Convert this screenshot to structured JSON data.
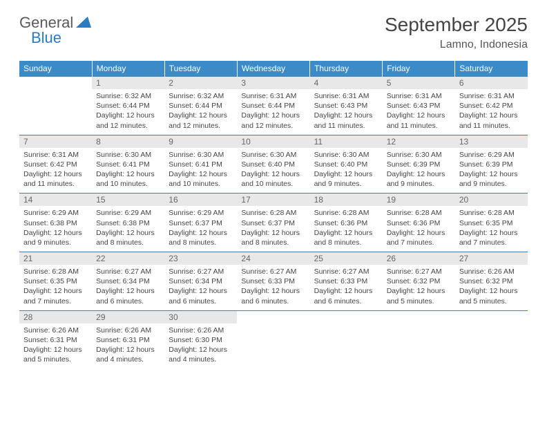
{
  "logo": {
    "text1": "General",
    "text2": "Blue"
  },
  "title": "September 2025",
  "location": "Lamno, Indonesia",
  "colors": {
    "header_bg": "#3b8bc9",
    "header_text": "#ffffff",
    "daynum_bg": "#e8e8e8",
    "daynum_text": "#666666",
    "cell_text": "#444444",
    "border": "#4a7ba8",
    "logo_gray": "#5a5a5a",
    "logo_blue": "#2b7bbf"
  },
  "fonts": {
    "title_size": 28,
    "location_size": 16,
    "header_size": 12,
    "daynum_size": 12,
    "body_size": 10.5
  },
  "day_headers": [
    "Sunday",
    "Monday",
    "Tuesday",
    "Wednesday",
    "Thursday",
    "Friday",
    "Saturday"
  ],
  "weeks": [
    [
      {
        "n": "",
        "sr": "",
        "ss": "",
        "dl": ""
      },
      {
        "n": "1",
        "sr": "Sunrise: 6:32 AM",
        "ss": "Sunset: 6:44 PM",
        "dl": "Daylight: 12 hours and 12 minutes."
      },
      {
        "n": "2",
        "sr": "Sunrise: 6:32 AM",
        "ss": "Sunset: 6:44 PM",
        "dl": "Daylight: 12 hours and 12 minutes."
      },
      {
        "n": "3",
        "sr": "Sunrise: 6:31 AM",
        "ss": "Sunset: 6:44 PM",
        "dl": "Daylight: 12 hours and 12 minutes."
      },
      {
        "n": "4",
        "sr": "Sunrise: 6:31 AM",
        "ss": "Sunset: 6:43 PM",
        "dl": "Daylight: 12 hours and 11 minutes."
      },
      {
        "n": "5",
        "sr": "Sunrise: 6:31 AM",
        "ss": "Sunset: 6:43 PM",
        "dl": "Daylight: 12 hours and 11 minutes."
      },
      {
        "n": "6",
        "sr": "Sunrise: 6:31 AM",
        "ss": "Sunset: 6:42 PM",
        "dl": "Daylight: 12 hours and 11 minutes."
      }
    ],
    [
      {
        "n": "7",
        "sr": "Sunrise: 6:31 AM",
        "ss": "Sunset: 6:42 PM",
        "dl": "Daylight: 12 hours and 11 minutes."
      },
      {
        "n": "8",
        "sr": "Sunrise: 6:30 AM",
        "ss": "Sunset: 6:41 PM",
        "dl": "Daylight: 12 hours and 10 minutes."
      },
      {
        "n": "9",
        "sr": "Sunrise: 6:30 AM",
        "ss": "Sunset: 6:41 PM",
        "dl": "Daylight: 12 hours and 10 minutes."
      },
      {
        "n": "10",
        "sr": "Sunrise: 6:30 AM",
        "ss": "Sunset: 6:40 PM",
        "dl": "Daylight: 12 hours and 10 minutes."
      },
      {
        "n": "11",
        "sr": "Sunrise: 6:30 AM",
        "ss": "Sunset: 6:40 PM",
        "dl": "Daylight: 12 hours and 9 minutes."
      },
      {
        "n": "12",
        "sr": "Sunrise: 6:30 AM",
        "ss": "Sunset: 6:39 PM",
        "dl": "Daylight: 12 hours and 9 minutes."
      },
      {
        "n": "13",
        "sr": "Sunrise: 6:29 AM",
        "ss": "Sunset: 6:39 PM",
        "dl": "Daylight: 12 hours and 9 minutes."
      }
    ],
    [
      {
        "n": "14",
        "sr": "Sunrise: 6:29 AM",
        "ss": "Sunset: 6:38 PM",
        "dl": "Daylight: 12 hours and 9 minutes."
      },
      {
        "n": "15",
        "sr": "Sunrise: 6:29 AM",
        "ss": "Sunset: 6:38 PM",
        "dl": "Daylight: 12 hours and 8 minutes."
      },
      {
        "n": "16",
        "sr": "Sunrise: 6:29 AM",
        "ss": "Sunset: 6:37 PM",
        "dl": "Daylight: 12 hours and 8 minutes."
      },
      {
        "n": "17",
        "sr": "Sunrise: 6:28 AM",
        "ss": "Sunset: 6:37 PM",
        "dl": "Daylight: 12 hours and 8 minutes."
      },
      {
        "n": "18",
        "sr": "Sunrise: 6:28 AM",
        "ss": "Sunset: 6:36 PM",
        "dl": "Daylight: 12 hours and 8 minutes."
      },
      {
        "n": "19",
        "sr": "Sunrise: 6:28 AM",
        "ss": "Sunset: 6:36 PM",
        "dl": "Daylight: 12 hours and 7 minutes."
      },
      {
        "n": "20",
        "sr": "Sunrise: 6:28 AM",
        "ss": "Sunset: 6:35 PM",
        "dl": "Daylight: 12 hours and 7 minutes."
      }
    ],
    [
      {
        "n": "21",
        "sr": "Sunrise: 6:28 AM",
        "ss": "Sunset: 6:35 PM",
        "dl": "Daylight: 12 hours and 7 minutes."
      },
      {
        "n": "22",
        "sr": "Sunrise: 6:27 AM",
        "ss": "Sunset: 6:34 PM",
        "dl": "Daylight: 12 hours and 6 minutes."
      },
      {
        "n": "23",
        "sr": "Sunrise: 6:27 AM",
        "ss": "Sunset: 6:34 PM",
        "dl": "Daylight: 12 hours and 6 minutes."
      },
      {
        "n": "24",
        "sr": "Sunrise: 6:27 AM",
        "ss": "Sunset: 6:33 PM",
        "dl": "Daylight: 12 hours and 6 minutes."
      },
      {
        "n": "25",
        "sr": "Sunrise: 6:27 AM",
        "ss": "Sunset: 6:33 PM",
        "dl": "Daylight: 12 hours and 6 minutes."
      },
      {
        "n": "26",
        "sr": "Sunrise: 6:27 AM",
        "ss": "Sunset: 6:32 PM",
        "dl": "Daylight: 12 hours and 5 minutes."
      },
      {
        "n": "27",
        "sr": "Sunrise: 6:26 AM",
        "ss": "Sunset: 6:32 PM",
        "dl": "Daylight: 12 hours and 5 minutes."
      }
    ],
    [
      {
        "n": "28",
        "sr": "Sunrise: 6:26 AM",
        "ss": "Sunset: 6:31 PM",
        "dl": "Daylight: 12 hours and 5 minutes."
      },
      {
        "n": "29",
        "sr": "Sunrise: 6:26 AM",
        "ss": "Sunset: 6:31 PM",
        "dl": "Daylight: 12 hours and 4 minutes."
      },
      {
        "n": "30",
        "sr": "Sunrise: 6:26 AM",
        "ss": "Sunset: 6:30 PM",
        "dl": "Daylight: 12 hours and 4 minutes."
      },
      {
        "n": "",
        "sr": "",
        "ss": "",
        "dl": ""
      },
      {
        "n": "",
        "sr": "",
        "ss": "",
        "dl": ""
      },
      {
        "n": "",
        "sr": "",
        "ss": "",
        "dl": ""
      },
      {
        "n": "",
        "sr": "",
        "ss": "",
        "dl": ""
      }
    ]
  ]
}
